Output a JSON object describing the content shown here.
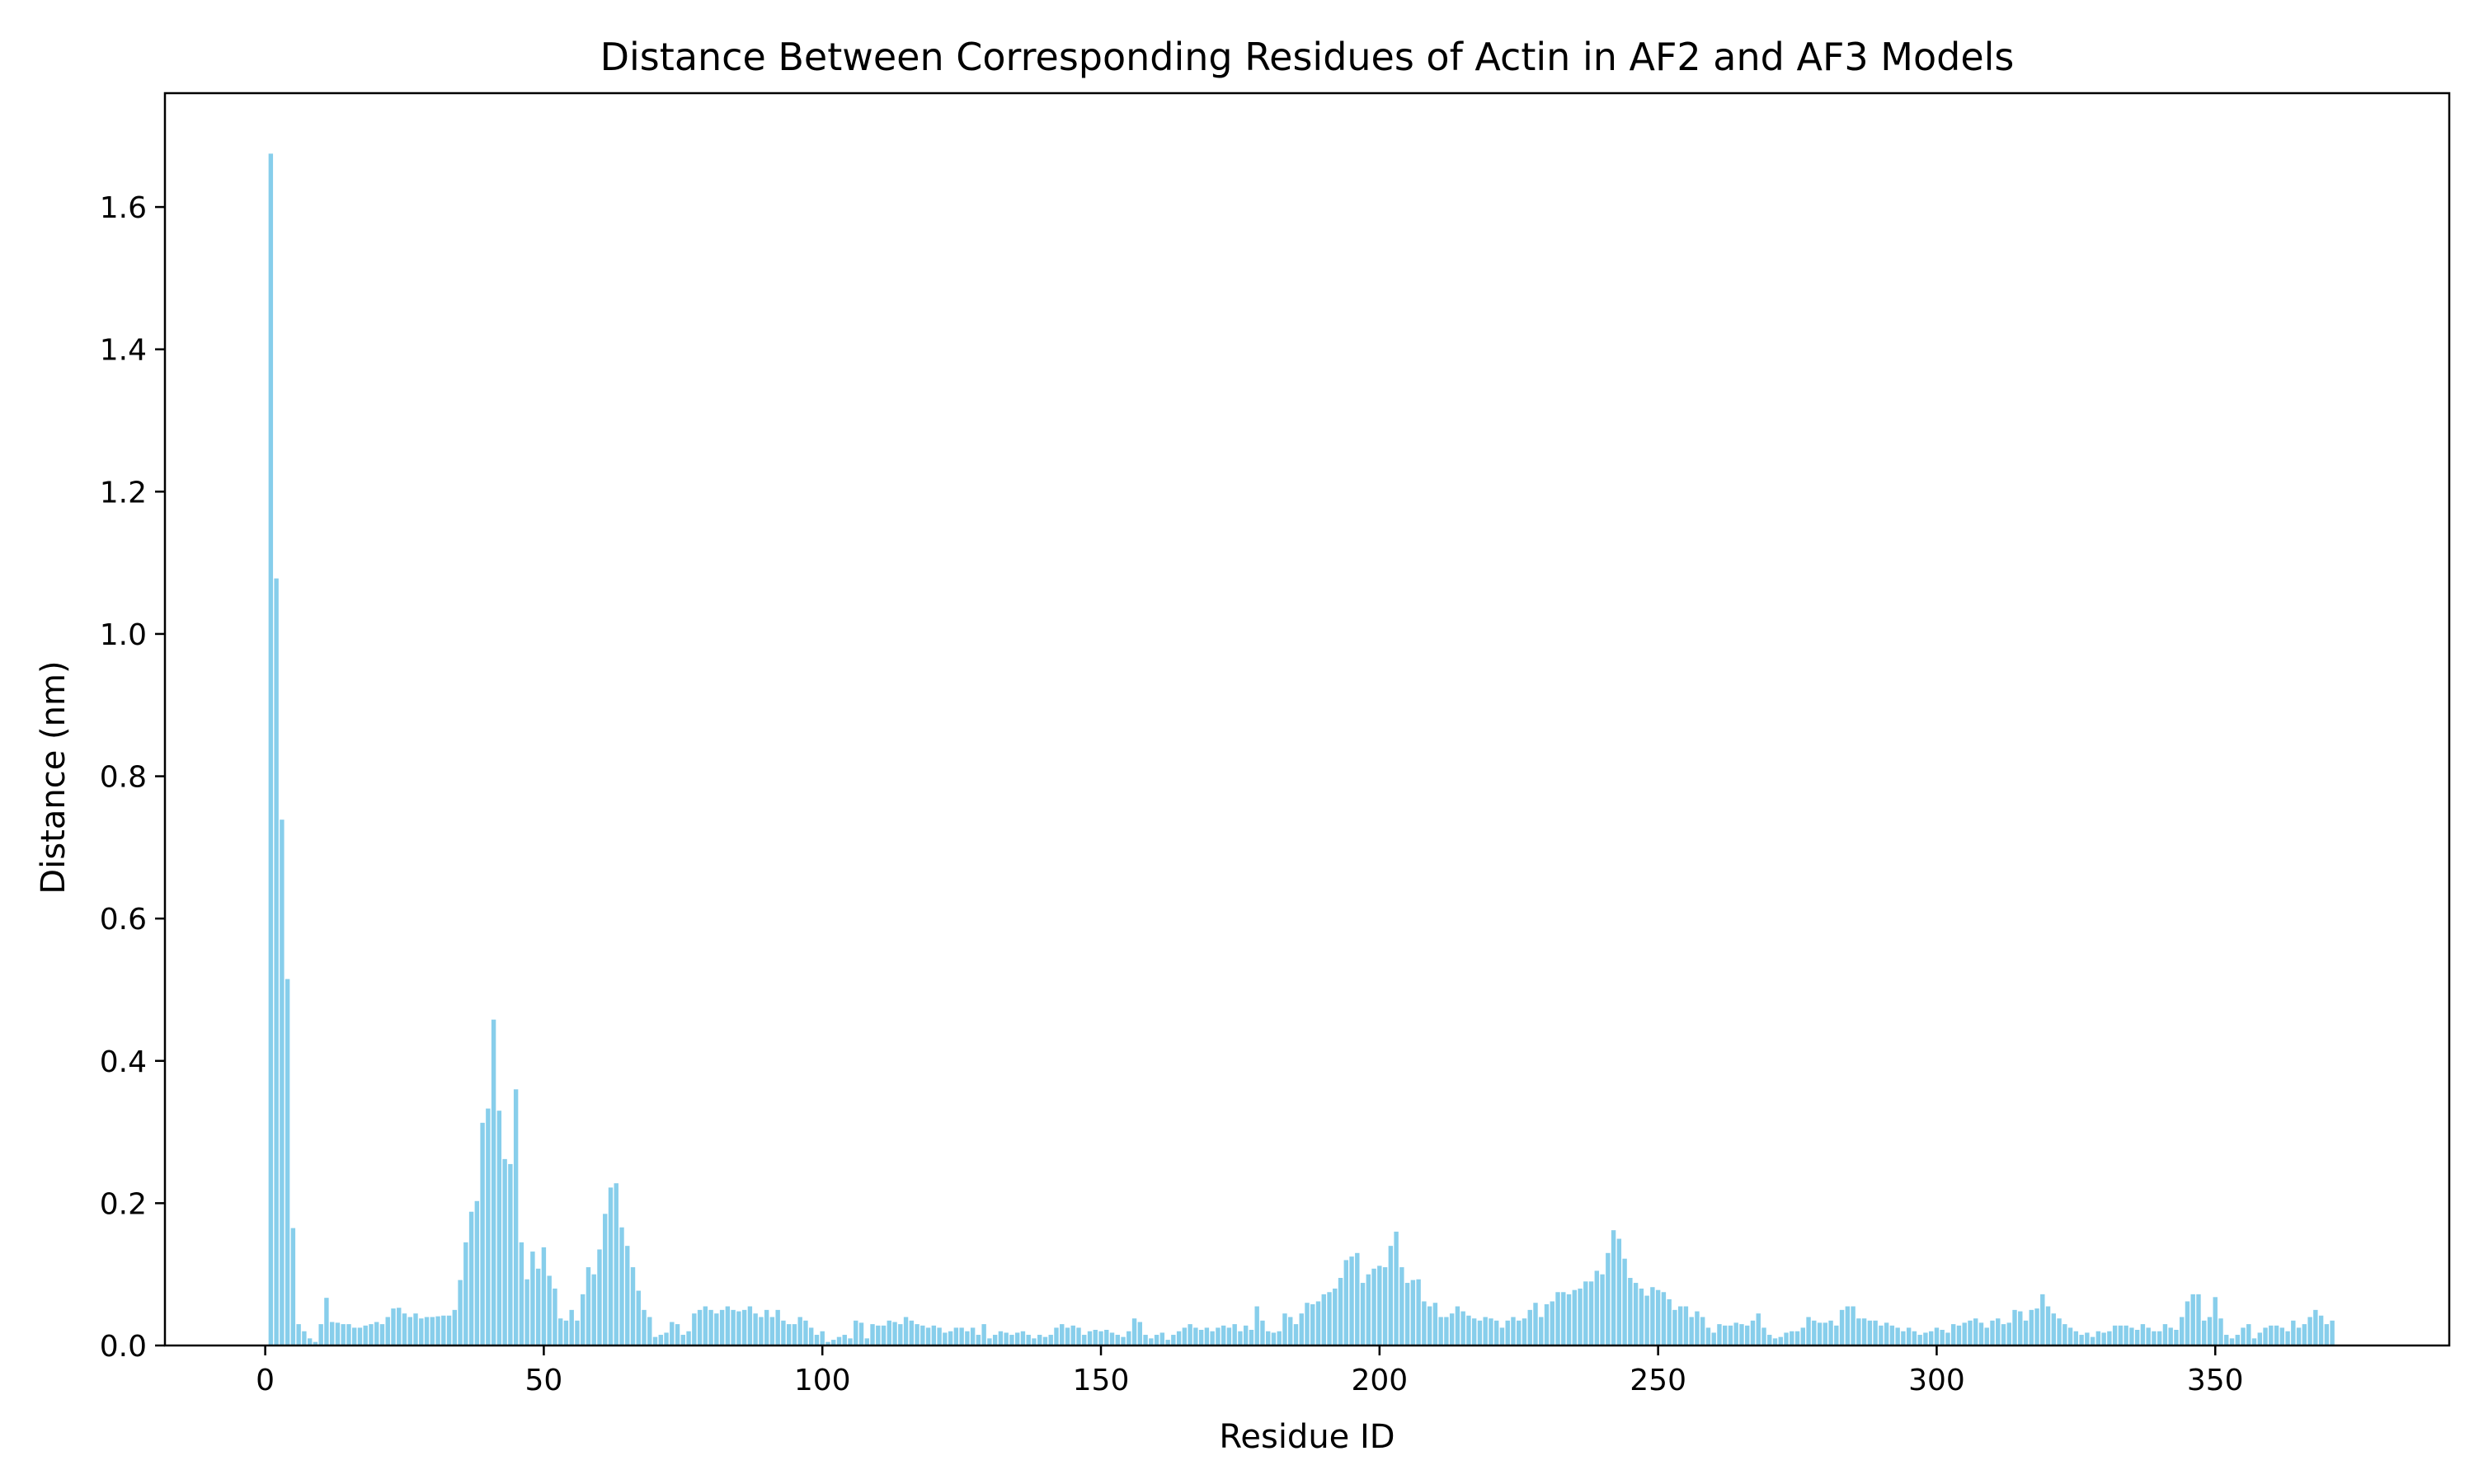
{
  "chart_data": {
    "type": "bar",
    "title": "Distance Between Corresponding Residues of Actin in AF2 and AF3 Models",
    "xlabel": "Residue ID",
    "ylabel": "Distance (nm)",
    "xlim": [
      -18,
      392
    ],
    "ylim": [
      0,
      1.76
    ],
    "xticks": [
      0,
      50,
      100,
      150,
      200,
      250,
      300,
      350
    ],
    "yticks": [
      0.0,
      0.2,
      0.4,
      0.6,
      0.8,
      1.0,
      1.2,
      1.4,
      1.6
    ],
    "grid": false,
    "legend": "none",
    "colors": {
      "bar": "#87ceeb",
      "axis": "#000000"
    },
    "x_start": 1,
    "values": [
      1.675,
      1.078,
      0.739,
      0.515,
      0.165,
      0.03,
      0.02,
      0.01,
      0.005,
      0.03,
      0.067,
      0.033,
      0.032,
      0.03,
      0.03,
      0.025,
      0.025,
      0.028,
      0.03,
      0.033,
      0.03,
      0.04,
      0.052,
      0.053,
      0.045,
      0.04,
      0.045,
      0.038,
      0.04,
      0.04,
      0.041,
      0.042,
      0.042,
      0.05,
      0.092,
      0.145,
      0.188,
      0.203,
      0.313,
      0.333,
      0.458,
      0.33,
      0.262,
      0.255,
      0.36,
      0.145,
      0.093,
      0.132,
      0.108,
      0.138,
      0.098,
      0.08,
      0.038,
      0.035,
      0.05,
      0.035,
      0.072,
      0.11,
      0.1,
      0.135,
      0.185,
      0.222,
      0.228,
      0.166,
      0.14,
      0.11,
      0.077,
      0.05,
      0.04,
      0.012,
      0.015,
      0.018,
      0.033,
      0.03,
      0.015,
      0.02,
      0.045,
      0.05,
      0.055,
      0.05,
      0.045,
      0.05,
      0.055,
      0.05,
      0.048,
      0.05,
      0.055,
      0.045,
      0.04,
      0.05,
      0.04,
      0.05,
      0.035,
      0.03,
      0.03,
      0.04,
      0.035,
      0.025,
      0.015,
      0.02,
      0.005,
      0.008,
      0.012,
      0.015,
      0.01,
      0.035,
      0.032,
      0.01,
      0.03,
      0.028,
      0.028,
      0.035,
      0.033,
      0.03,
      0.04,
      0.035,
      0.03,
      0.028,
      0.025,
      0.028,
      0.025,
      0.018,
      0.02,
      0.025,
      0.025,
      0.02,
      0.025,
      0.015,
      0.03,
      0.01,
      0.015,
      0.02,
      0.018,
      0.015,
      0.018,
      0.02,
      0.015,
      0.01,
      0.015,
      0.012,
      0.015,
      0.025,
      0.03,
      0.025,
      0.028,
      0.025,
      0.015,
      0.02,
      0.022,
      0.02,
      0.022,
      0.018,
      0.015,
      0.012,
      0.02,
      0.038,
      0.033,
      0.015,
      0.01,
      0.015,
      0.018,
      0.008,
      0.015,
      0.02,
      0.025,
      0.03,
      0.025,
      0.022,
      0.025,
      0.02,
      0.025,
      0.028,
      0.025,
      0.03,
      0.02,
      0.028,
      0.022,
      0.055,
      0.035,
      0.02,
      0.018,
      0.02,
      0.045,
      0.04,
      0.03,
      0.045,
      0.06,
      0.058,
      0.062,
      0.072,
      0.075,
      0.08,
      0.095,
      0.12,
      0.125,
      0.13,
      0.088,
      0.1,
      0.108,
      0.112,
      0.11,
      0.14,
      0.16,
      0.11,
      0.088,
      0.092,
      0.093,
      0.062,
      0.055,
      0.06,
      0.04,
      0.04,
      0.045,
      0.055,
      0.048,
      0.042,
      0.038,
      0.035,
      0.04,
      0.038,
      0.035,
      0.025,
      0.035,
      0.04,
      0.035,
      0.038,
      0.05,
      0.06,
      0.04,
      0.058,
      0.062,
      0.075,
      0.075,
      0.072,
      0.078,
      0.08,
      0.09,
      0.09,
      0.105,
      0.1,
      0.13,
      0.162,
      0.15,
      0.122,
      0.095,
      0.088,
      0.08,
      0.07,
      0.082,
      0.078,
      0.075,
      0.065,
      0.05,
      0.055,
      0.055,
      0.04,
      0.048,
      0.04,
      0.025,
      0.018,
      0.03,
      0.028,
      0.028,
      0.032,
      0.03,
      0.028,
      0.035,
      0.045,
      0.025,
      0.015,
      0.01,
      0.012,
      0.018,
      0.02,
      0.02,
      0.025,
      0.04,
      0.035,
      0.032,
      0.032,
      0.035,
      0.028,
      0.05,
      0.055,
      0.055,
      0.038,
      0.038,
      0.035,
      0.035,
      0.028,
      0.032,
      0.028,
      0.025,
      0.02,
      0.025,
      0.02,
      0.015,
      0.018,
      0.02,
      0.025,
      0.022,
      0.018,
      0.03,
      0.028,
      0.032,
      0.035,
      0.038,
      0.032,
      0.025,
      0.035,
      0.038,
      0.03,
      0.032,
      0.05,
      0.048,
      0.035,
      0.05,
      0.052,
      0.072,
      0.055,
      0.045,
      0.038,
      0.03,
      0.025,
      0.02,
      0.015,
      0.018,
      0.012,
      0.02,
      0.018,
      0.02,
      0.028,
      0.028,
      0.028,
      0.025,
      0.022,
      0.03,
      0.025,
      0.02,
      0.02,
      0.03,
      0.025,
      0.022,
      0.04,
      0.062,
      0.072,
      0.072,
      0.035,
      0.04,
      0.068,
      0.038,
      0.015,
      0.01,
      0.015,
      0.025,
      0.03,
      0.01,
      0.018,
      0.025,
      0.028,
      0.028,
      0.025,
      0.02,
      0.035,
      0.025,
      0.03,
      0.04,
      0.05,
      0.042,
      0.03,
      0.035
    ]
  }
}
